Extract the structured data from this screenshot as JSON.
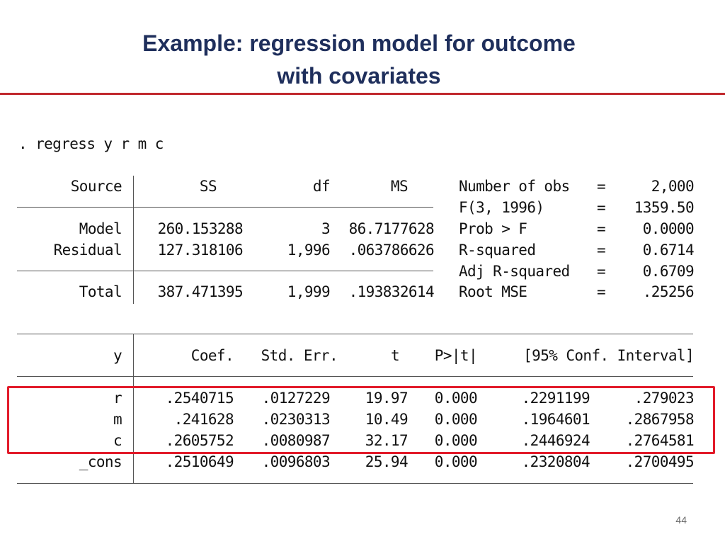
{
  "slide": {
    "title_line1": "Example: regression model for outcome",
    "title_line2": "with covariates",
    "page_number": "44",
    "highlight_color": "#e21b2a",
    "title_color": "#1f2f5c",
    "rule_color": "#c0282d"
  },
  "command": ". regress y r m c",
  "anova": {
    "headers": [
      "Source",
      "SS",
      "df",
      "MS"
    ],
    "rows": [
      {
        "source": "Model",
        "ss": "260.153288",
        "df": "3",
        "ms": "86.7177628"
      },
      {
        "source": "Residual",
        "ss": "127.318106",
        "df": "1,996",
        "ms": ".063786626"
      },
      {
        "source": "Total",
        "ss": "387.471395",
        "df": "1,999",
        "ms": ".193832614"
      }
    ]
  },
  "stats": [
    {
      "label": "Number of obs",
      "eq": "=",
      "value": "2,000"
    },
    {
      "label": "F(3, 1996)",
      "eq": "=",
      "value": "1359.50"
    },
    {
      "label": "Prob > F",
      "eq": "=",
      "value": "0.0000"
    },
    {
      "label": "R-squared",
      "eq": "=",
      "value": "0.6714"
    },
    {
      "label": "Adj R-squared",
      "eq": "=",
      "value": "0.6709"
    },
    {
      "label": "Root MSE",
      "eq": "=",
      "value": ".25256"
    }
  ],
  "coef": {
    "headers": {
      "var": "y",
      "coef": "Coef.",
      "se": "Std. Err.",
      "t": "t",
      "p": "P>|t|",
      "ci": "[95% Conf. Interval]"
    },
    "rows": [
      {
        "var": "r",
        "coef": ".2540715",
        "se": ".0127229",
        "t": "19.97",
        "p": "0.000",
        "lo": ".2291199",
        "hi": ".279023"
      },
      {
        "var": "m",
        "coef": ".241628",
        "se": ".0230313",
        "t": "10.49",
        "p": "0.000",
        "lo": ".1964601",
        "hi": ".2867958"
      },
      {
        "var": "c",
        "coef": ".2605752",
        "se": ".0080987",
        "t": "32.17",
        "p": "0.000",
        "lo": ".2446924",
        "hi": ".2764581"
      },
      {
        "var": "_cons",
        "coef": ".2510649",
        "se": ".0096803",
        "t": "25.94",
        "p": "0.000",
        "lo": ".2320804",
        "hi": ".2700495"
      }
    ]
  }
}
